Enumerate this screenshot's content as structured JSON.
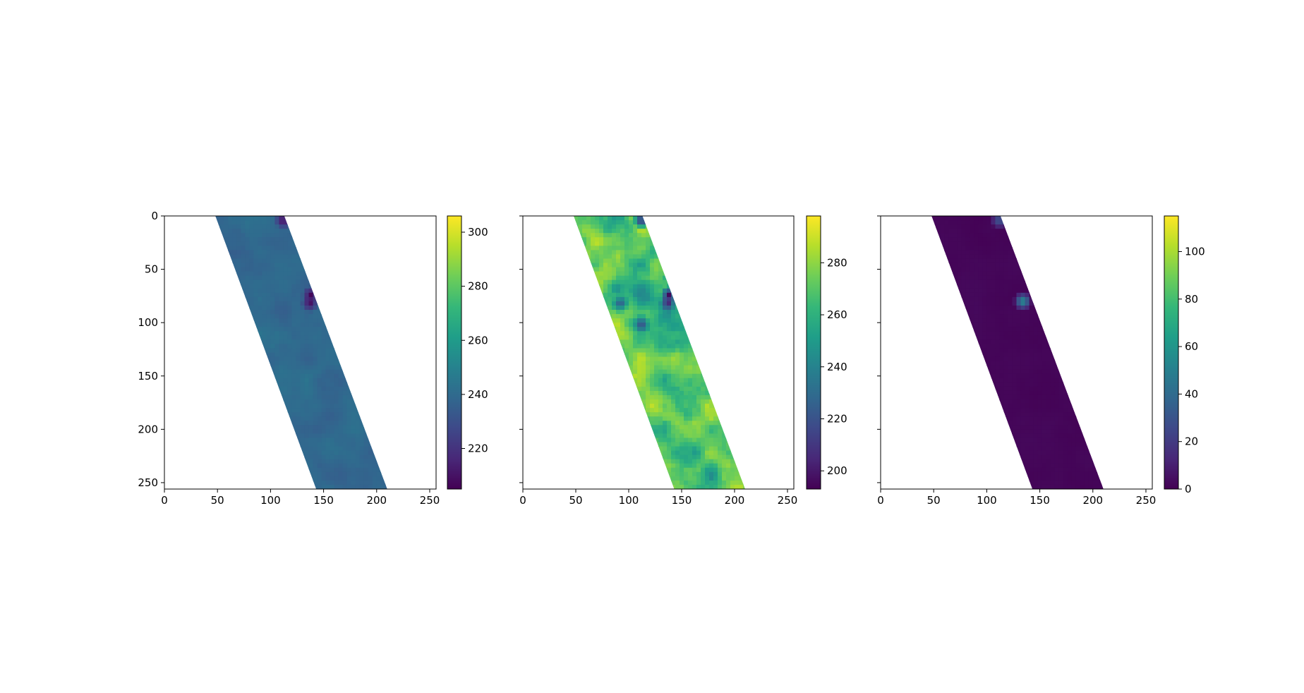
{
  "chart_data": [
    {
      "type": "heatmap",
      "title": "",
      "xlabel": "",
      "ylabel": "",
      "xlim": [
        0,
        256
      ],
      "ylim": [
        256,
        0
      ],
      "xticks": [
        0,
        50,
        100,
        150,
        200,
        250
      ],
      "yticks": [
        0,
        50,
        100,
        150,
        200,
        250
      ],
      "ytick_labels_visible": true,
      "swath": {
        "top_left_x": 48,
        "top_right_x": 113,
        "bottom_left_x": 143,
        "bottom_right_x": 210
      },
      "field_value_range": [
        233,
        246
      ],
      "dark_spots": [
        {
          "x": 110,
          "y": 2,
          "value": 206
        },
        {
          "x": 136,
          "y": 72,
          "value": 206
        },
        {
          "x": 135,
          "y": 80,
          "value": 207
        }
      ],
      "colorbar": {
        "range": [
          205,
          306
        ],
        "ticks": [
          220,
          240,
          260,
          280,
          300
        ],
        "colormap": "viridis"
      }
    },
    {
      "type": "heatmap",
      "title": "",
      "xlabel": "",
      "ylabel": "",
      "xlim": [
        0,
        256
      ],
      "ylim": [
        256,
        0
      ],
      "xticks": [
        0,
        50,
        100,
        150,
        200,
        250
      ],
      "yticks": [
        0,
        50,
        100,
        150,
        200,
        250
      ],
      "ytick_labels_visible": false,
      "swath": {
        "top_left_x": 48,
        "top_right_x": 113,
        "bottom_left_x": 143,
        "bottom_right_x": 210
      },
      "field_value_range": [
        225,
        297
      ],
      "dark_spots": [
        {
          "x": 110,
          "y": 2,
          "value": 195
        },
        {
          "x": 136,
          "y": 72,
          "value": 195
        },
        {
          "x": 135,
          "y": 80,
          "value": 200
        },
        {
          "x": 90,
          "y": 80,
          "value": 218
        },
        {
          "x": 110,
          "y": 100,
          "value": 214
        }
      ],
      "colorbar": {
        "range": [
          193,
          298
        ],
        "ticks": [
          200,
          220,
          240,
          260,
          280
        ],
        "colormap": "viridis"
      }
    },
    {
      "type": "heatmap",
      "title": "",
      "xlabel": "",
      "ylabel": "",
      "xlim": [
        0,
        256
      ],
      "ylim": [
        256,
        0
      ],
      "xticks": [
        0,
        50,
        100,
        150,
        200,
        250
      ],
      "yticks": [
        0,
        50,
        100,
        150,
        200,
        250
      ],
      "ytick_labels_visible": false,
      "swath": {
        "top_left_x": 48,
        "top_right_x": 113,
        "bottom_left_x": 143,
        "bottom_right_x": 210
      },
      "field_value_range": [
        0,
        3
      ],
      "dark_spots": [
        {
          "x": 110,
          "y": 2,
          "value": 35
        },
        {
          "x": 132,
          "y": 78,
          "value": 60
        }
      ],
      "colorbar": {
        "range": [
          0,
          115
        ],
        "ticks": [
          0,
          20,
          40,
          60,
          80,
          100
        ],
        "colormap": "viridis"
      }
    }
  ]
}
